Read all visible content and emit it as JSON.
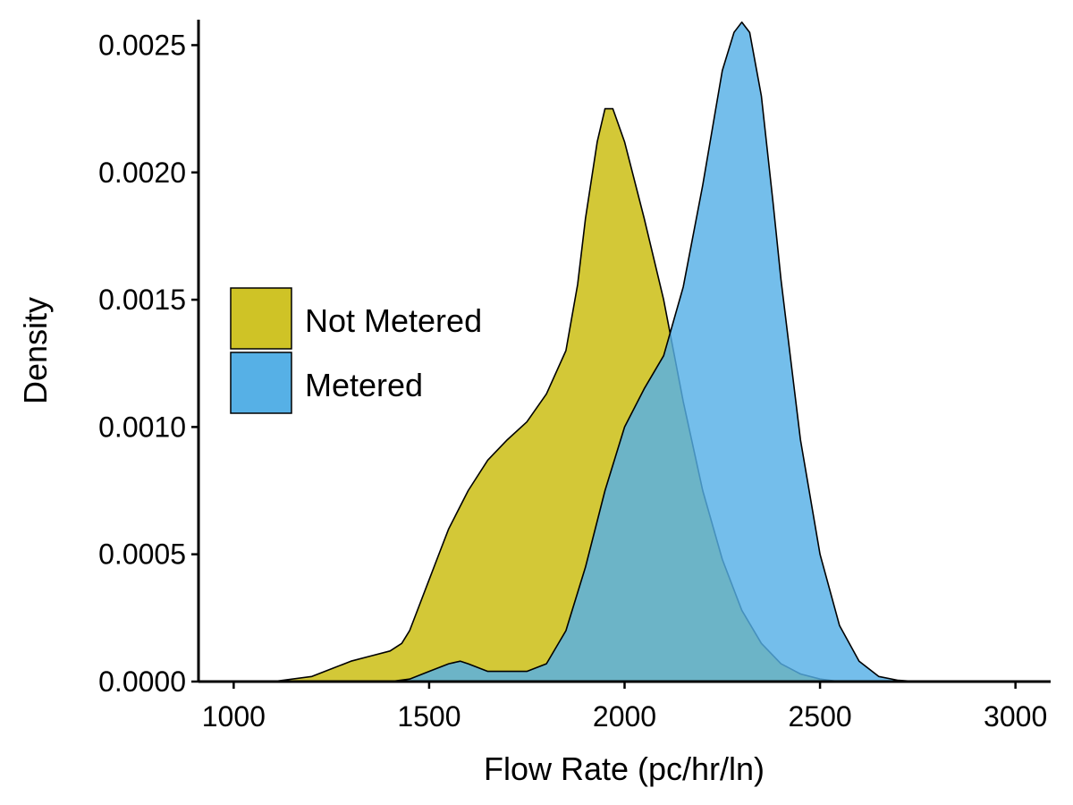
{
  "chart_data": {
    "type": "area",
    "title": "",
    "xlabel": "Flow Rate (pc/hr/ln)",
    "ylabel": "Density",
    "xlim": [
      910,
      3090
    ],
    "ylim": [
      0,
      0.0026
    ],
    "x_ticks": [
      1000,
      1500,
      2000,
      2500,
      3000
    ],
    "x_tick_labels": [
      "1000",
      "1500",
      "2000",
      "2500",
      "3000"
    ],
    "y_ticks": [
      0,
      0.0005,
      0.001,
      0.0015,
      0.002,
      0.0025
    ],
    "y_tick_labels": [
      "0.0000",
      "0.0005",
      "0.0010",
      "0.0015",
      "0.0020",
      "0.0025"
    ],
    "grid": false,
    "legend_position": "left-middle inside",
    "series": [
      {
        "name": "Not Metered",
        "color": "#cfc326",
        "x": [
          1000,
          1100,
          1200,
          1250,
          1300,
          1350,
          1400,
          1430,
          1450,
          1500,
          1530,
          1550,
          1600,
          1650,
          1700,
          1750,
          1800,
          1850,
          1880,
          1900,
          1930,
          1950,
          1970,
          2000,
          2050,
          2100,
          2150,
          2200,
          2250,
          2300,
          2350,
          2400,
          2450,
          2500,
          2550,
          2600,
          2700,
          2800,
          3000
        ],
        "values": [
          0,
          0.0,
          2e-05,
          5e-05,
          8e-05,
          0.0001,
          0.00012,
          0.00015,
          0.0002,
          0.0004,
          0.00052,
          0.0006,
          0.00075,
          0.00087,
          0.00095,
          0.00102,
          0.00113,
          0.0013,
          0.00156,
          0.00182,
          0.00212,
          0.00225,
          0.00225,
          0.00212,
          0.00182,
          0.0015,
          0.0011,
          0.00075,
          0.00048,
          0.00028,
          0.00015,
          7e-05,
          3e-05,
          1e-05,
          0.0,
          0.0,
          0,
          0,
          0
        ]
      },
      {
        "name": "Metered",
        "color": "#56b0e6",
        "x": [
          1400,
          1450,
          1500,
          1550,
          1580,
          1600,
          1650,
          1700,
          1750,
          1800,
          1850,
          1900,
          1950,
          2000,
          2050,
          2100,
          2150,
          2200,
          2230,
          2250,
          2280,
          2300,
          2320,
          2350,
          2380,
          2400,
          2450,
          2500,
          2550,
          2600,
          2650,
          2700,
          2750
        ],
        "values": [
          0,
          1e-05,
          4e-05,
          7e-05,
          8e-05,
          7e-05,
          4e-05,
          4e-05,
          4e-05,
          7e-05,
          0.0002,
          0.00045,
          0.00075,
          0.001,
          0.00115,
          0.00128,
          0.00155,
          0.00195,
          0.00222,
          0.0024,
          0.00255,
          0.00259,
          0.00255,
          0.0023,
          0.00188,
          0.00158,
          0.00095,
          0.0005,
          0.00022,
          8e-05,
          2e-05,
          5e-06,
          0
        ]
      }
    ]
  }
}
